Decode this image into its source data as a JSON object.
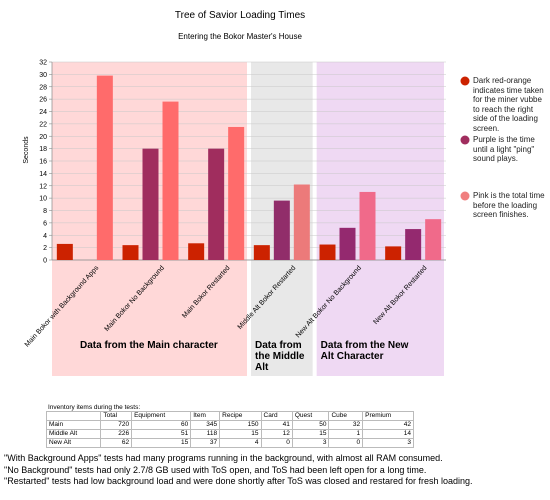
{
  "chart_data": {
    "type": "bar",
    "title": "Tree of Savior Loading Times",
    "subtitle": "Entering the Bokor Master's House",
    "ylabel": "Seconds",
    "xlabel": "",
    "ylim": [
      0,
      32
    ],
    "yticks": [
      0,
      2,
      4,
      6,
      8,
      10,
      12,
      14,
      16,
      18,
      20,
      22,
      24,
      26,
      28,
      30,
      32
    ],
    "grid": true,
    "categories": [
      "Main Bokor with Background Apps",
      "Main Bokor No Background",
      "Main Bokor Restarted",
      "Middle Alt Bokor Restarted",
      "New Alt Bokor No Background",
      "New Alt Bokor Restarted"
    ],
    "series": [
      {
        "color": "#cc2200",
        "values": [
          2.6,
          2.4,
          2.7,
          2.4,
          2.5,
          2.2
        ]
      },
      {
        "color": "#a02d5e",
        "values": [
          0,
          18.0,
          18.0,
          9.6,
          5.2,
          5.0
        ]
      },
      {
        "color": "#ff6f6f",
        "values": [
          29.8,
          25.6,
          21.5,
          12.2,
          11.0,
          6.6
        ]
      }
    ],
    "series_colors_by_category": [
      [
        "#cc2200",
        "#a02d5e",
        "#ff6b6b"
      ],
      [
        "#cc2200",
        "#a02d5e",
        "#ff6b6b"
      ],
      [
        "#cc2200",
        "#a02d5e",
        "#ff6b6b"
      ],
      [
        "#cc2200",
        "#912d6a",
        "#ec7a7a"
      ],
      [
        "#cc2200",
        "#94296f",
        "#f06a8a"
      ],
      [
        "#cc2200",
        "#94296f",
        "#f06a8a"
      ]
    ],
    "regions": [
      {
        "label": "Data from the Main character",
        "color": "#ffd8d8",
        "from": 0,
        "to": 2
      },
      {
        "label": "Data from the Middle Alt",
        "color": "#e8e8e8",
        "from": 3,
        "to": 3
      },
      {
        "label": "Data from the New Alt Character",
        "color": "#efd9f3",
        "from": 4,
        "to": 5
      }
    ]
  },
  "legend": {
    "placement": "right",
    "items": [
      {
        "color": "#cc2200",
        "text": "Dark red-orange indicates time taken for the miner vubbe to reach the right side of the loading screen."
      },
      {
        "color": "#a02d5e",
        "text": "Purple is the time until a light \"ping\" sound plays."
      },
      {
        "color": "#f07f7f",
        "text": "Pink is the total time before the loading screen finishes."
      }
    ]
  },
  "inventory": {
    "caption": "Inventory items during the tests:",
    "headers": [
      "",
      "Total",
      "Equipment",
      "Item",
      "Recipe",
      "Card",
      "Quest",
      "Cube",
      "Premium"
    ],
    "rows": [
      [
        "Main",
        "720",
        "60",
        "345",
        "150",
        "41",
        "50",
        "32",
        "42"
      ],
      [
        "Middle Alt",
        "226",
        "51",
        "118",
        "15",
        "12",
        "15",
        "1",
        "14"
      ],
      [
        "New Alt",
        "62",
        "15",
        "37",
        "4",
        "0",
        "3",
        "0",
        "3"
      ]
    ]
  },
  "notes": [
    "\"With Background Apps\" tests had many programs running in the background, with almost all RAM consumed.",
    "\"No Background\" tests had only 2.7/8 GB used with ToS open, and ToS had been left open for a long time.",
    "\"Restarted\" tests had low background load and were done shortly after ToS was closed and restared for fresh loading."
  ]
}
